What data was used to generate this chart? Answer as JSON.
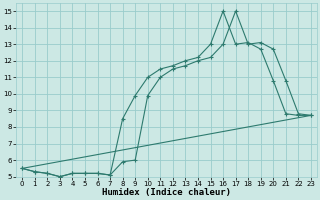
{
  "xlabel": "Humidex (Indice chaleur)",
  "background_color": "#cce8e4",
  "grid_color": "#99cccc",
  "line_color": "#2d7a6e",
  "xlim": [
    -0.5,
    23.5
  ],
  "ylim": [
    5,
    15.5
  ],
  "xticks": [
    0,
    1,
    2,
    3,
    4,
    5,
    6,
    7,
    8,
    9,
    10,
    11,
    12,
    13,
    14,
    15,
    16,
    17,
    18,
    19,
    20,
    21,
    22,
    23
  ],
  "yticks": [
    5,
    6,
    7,
    8,
    9,
    10,
    11,
    12,
    13,
    14,
    15
  ],
  "line1_x": [
    0,
    1,
    2,
    3,
    4,
    5,
    6,
    7,
    8,
    9,
    10,
    11,
    12,
    13,
    14,
    15,
    16,
    17,
    18,
    19,
    20,
    21,
    22,
    23
  ],
  "line1_y": [
    5.5,
    5.3,
    5.2,
    5.0,
    5.2,
    5.2,
    5.2,
    5.1,
    8.5,
    9.9,
    11.0,
    11.5,
    11.7,
    12.0,
    12.2,
    13.0,
    15.0,
    13.0,
    13.1,
    12.7,
    10.8,
    8.8,
    8.7,
    8.7
  ],
  "line2_x": [
    0,
    1,
    2,
    3,
    4,
    5,
    6,
    7,
    8,
    9,
    10,
    11,
    12,
    13,
    14,
    15,
    16,
    17,
    18,
    19,
    20,
    21,
    22,
    23
  ],
  "line2_y": [
    5.5,
    5.3,
    5.2,
    5.0,
    5.2,
    5.2,
    5.2,
    5.1,
    5.9,
    6.0,
    9.9,
    11.0,
    11.5,
    11.7,
    12.0,
    12.2,
    13.0,
    15.0,
    13.0,
    13.1,
    12.7,
    10.8,
    8.8,
    8.7
  ],
  "line3_x": [
    0,
    23
  ],
  "line3_y": [
    5.5,
    8.7
  ],
  "tick_labelsize": 5,
  "xlabel_fontsize": 6.5
}
